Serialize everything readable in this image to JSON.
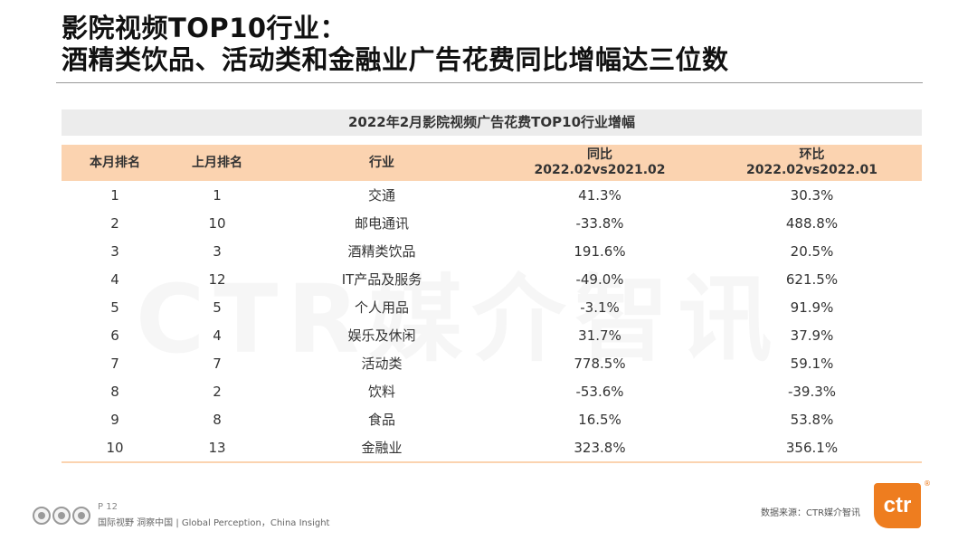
{
  "title": {
    "line1": "影院视频TOP10行业：",
    "line2": "酒精类饮品、活动类和金融业广告花费同比增幅达三位数"
  },
  "watermark": "CTR媒介智讯",
  "table": {
    "title": "2022年2月影院视频广告花费TOP10行业增幅",
    "headers": {
      "rank_this": "本月排名",
      "rank_last": "上月排名",
      "industry": "行业",
      "yoy_label": "同比",
      "yoy_period": "2022.02vs2021.02",
      "mom_label": "环比",
      "mom_period": "2022.02vs2022.01"
    },
    "rows": [
      [
        "1",
        "1",
        "交通",
        "41.3%",
        "30.3%"
      ],
      [
        "2",
        "10",
        "邮电通讯",
        "-33.8%",
        "488.8%"
      ],
      [
        "3",
        "3",
        "酒精类饮品",
        "191.6%",
        "20.5%"
      ],
      [
        "4",
        "12",
        "IT产品及服务",
        "-49.0%",
        "621.5%"
      ],
      [
        "5",
        "5",
        "个人用品",
        "-3.1%",
        "91.9%"
      ],
      [
        "6",
        "4",
        "娱乐及休闲",
        "31.7%",
        "37.9%"
      ],
      [
        "7",
        "7",
        "活动类",
        "778.5%",
        "59.1%"
      ],
      [
        "8",
        "2",
        "饮料",
        "-53.6%",
        "-39.3%"
      ],
      [
        "9",
        "8",
        "食品",
        "16.5%",
        "53.8%"
      ],
      [
        "10",
        "13",
        "金融业",
        "323.8%",
        "356.1%"
      ]
    ]
  },
  "footer": {
    "page": "P 12",
    "tagline": "国际视野  洞察中国 | Global Perception，China Insight",
    "source": "数据来源：CTR媒介智讯",
    "logo_text": "ctr",
    "reg_mark": "®"
  },
  "colors": {
    "header_bg": "#fbd3b0",
    "table_title_bg": "#ececec",
    "brand_orange": "#ee7d1f"
  }
}
